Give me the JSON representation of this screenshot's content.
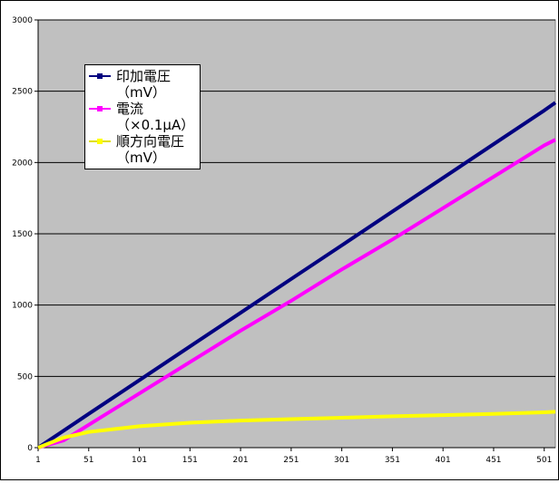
{
  "chart_data": {
    "type": "line",
    "x": [
      1,
      26,
      51,
      101,
      151,
      201,
      251,
      301,
      351,
      401,
      451,
      501,
      512
    ],
    "series": [
      {
        "name": "印加電圧（mV）",
        "color": "#000080",
        "values": [
          0,
          118,
          237,
          473,
          710,
          946,
          1183,
          1419,
          1656,
          1892,
          2129,
          2365,
          2420
        ]
      },
      {
        "name": "電流（×0.1μA）",
        "color": "#ff00ff",
        "values": [
          0,
          50,
          160,
          380,
          600,
          820,
          1030,
          1250,
          1460,
          1680,
          1900,
          2120,
          2160
        ]
      },
      {
        "name": "順方向電圧（mV）",
        "color": "#ffff00",
        "values": [
          0,
          70,
          110,
          150,
          175,
          190,
          200,
          210,
          220,
          228,
          237,
          248,
          252
        ]
      }
    ],
    "xlim": [
      1,
      512
    ],
    "xticks": [
      1,
      51,
      101,
      151,
      201,
      251,
      301,
      351,
      401,
      451,
      501
    ],
    "ylim": [
      0,
      3000
    ],
    "yticks": [
      0,
      500,
      1000,
      1500,
      2000,
      2500,
      3000
    ],
    "grid": true,
    "plot_background": "#c0c0c0",
    "legend": "upper left"
  }
}
